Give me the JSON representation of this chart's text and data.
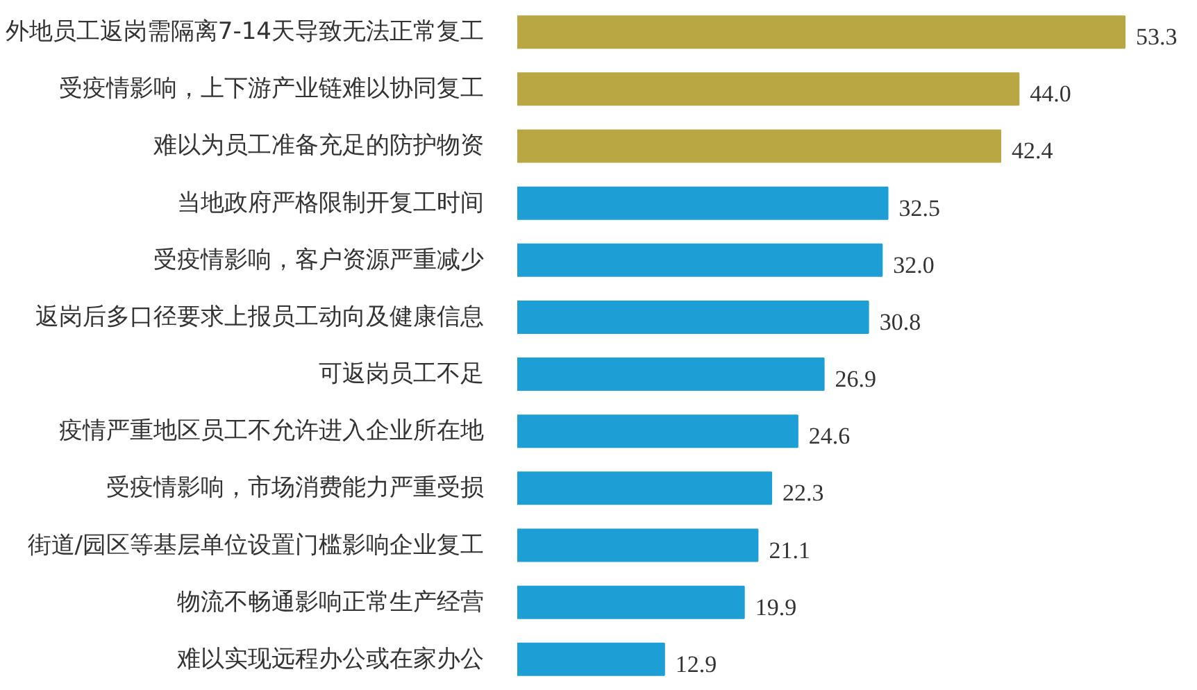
{
  "chart_data": {
    "type": "bar",
    "orientation": "horizontal",
    "value_labels": [
      "53.3",
      "44.0",
      "42.4",
      "32.5",
      "32.0",
      "30.8",
      "26.9",
      "24.6",
      "22.3",
      "21.1",
      "19.9",
      "12.9"
    ],
    "categories": [
      "外地员工返岗需隔离7-14天导致无法正常复工",
      "受疫情影响，上下游产业链难以协同复工",
      "难以为员工准备充足的防护物资",
      "当地政府严格限制开复工时间",
      "受疫情影响，客户资源严重减少",
      "返岗后多口径要求上报员工动向及健康信息",
      "可返岗员工不足",
      "疫情严重地区员工不允许进入企业所在地",
      "受疫情影响，市场消费能力严重受损",
      "街道/园区等基层单位设置门槛影响企业复工",
      "物流不畅通影响正常生产经营",
      "难以实现远程办公或在家办公"
    ],
    "values": [
      53.3,
      44.0,
      42.4,
      32.5,
      32.0,
      30.8,
      26.9,
      24.6,
      22.3,
      21.1,
      19.9,
      12.9
    ],
    "colors": [
      "#b8a742",
      "#b8a742",
      "#b8a742",
      "#1d9fd6",
      "#1d9fd6",
      "#1d9fd6",
      "#1d9fd6",
      "#1d9fd6",
      "#1d9fd6",
      "#1d9fd6",
      "#1d9fd6",
      "#1d9fd6"
    ]
  }
}
